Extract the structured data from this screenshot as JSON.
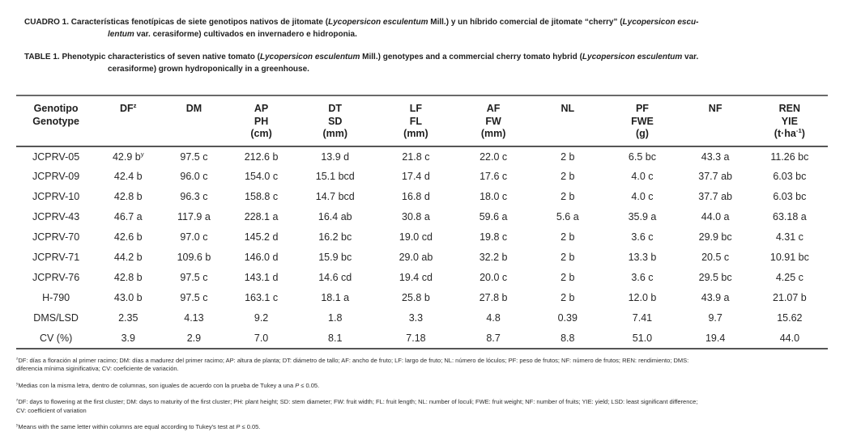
{
  "document": {
    "captions": {
      "spanish": [
        {
          "t": "CUADRO 1. Características fenotípicas de siete genotipos nativos de jitomate ("
        },
        {
          "t": "Lycopersicon esculentum",
          "i": true
        },
        {
          "t": " Mill.) y un híbrido comercial de jitomate “cherry” ("
        },
        {
          "t": "Lycopersicon escu-",
          "i": true
        },
        {
          "br": true
        },
        {
          "t": "lentum",
          "i": true
        },
        {
          "t": " var. cerasiforme) cultivados en invernadero e hidroponia."
        }
      ],
      "english": [
        {
          "t": "TABLE 1. Phenotypic characteristics of seven native tomato ("
        },
        {
          "t": "Lycopersicon esculentum",
          "i": true
        },
        {
          "t": " Mill.) genotypes and a commercial cherry tomato hybrid ("
        },
        {
          "t": "Lycopersicon esculentum",
          "i": true
        },
        {
          "t": " var."
        },
        {
          "br": true
        },
        {
          "t": "cerasiforme) grown hydroponically in a greenhouse."
        }
      ]
    }
  },
  "table": {
    "columns": [
      {
        "key": "genotype",
        "lines": [
          "Genotipo",
          "Genotype"
        ]
      },
      {
        "key": "df",
        "lines": [
          [
            {
              "t": "DF"
            },
            {
              "t": "z",
              "sup": true
            }
          ]
        ]
      },
      {
        "key": "dm",
        "lines": [
          "DM"
        ]
      },
      {
        "key": "ap-ph",
        "lines": [
          "AP",
          "PH",
          "(cm)"
        ]
      },
      {
        "key": "dt-sd",
        "lines": [
          "DT",
          "SD",
          "(mm)"
        ]
      },
      {
        "key": "lf-fl",
        "lines": [
          "LF",
          "FL",
          "(mm)"
        ]
      },
      {
        "key": "af-fw",
        "lines": [
          "AF",
          "FW",
          "(mm)"
        ]
      },
      {
        "key": "nl",
        "lines": [
          "NL"
        ]
      },
      {
        "key": "pf-fwe",
        "lines": [
          "PF",
          "FWE",
          "(g)"
        ]
      },
      {
        "key": "nf",
        "lines": [
          "NF"
        ]
      },
      {
        "key": "ren-yie",
        "lines": [
          "REN",
          "YIE",
          [
            {
              "t": "(t·ha"
            },
            {
              "t": "-1",
              "sup": true
            },
            {
              "t": ")"
            }
          ]
        ]
      }
    ],
    "rows": [
      [
        "JCPRV-05",
        [
          {
            "t": "42.9 b"
          },
          {
            "t": "y",
            "sup": true
          }
        ],
        "97.5 c",
        "212.6 b",
        "13.9 d",
        "21.8 c",
        "22.0 c",
        "2 b",
        "6.5 bc",
        "43.3 a",
        "11.26 bc"
      ],
      [
        "JCPRV-09",
        "42.4 b",
        "96.0 c",
        "154.0 c",
        "15.1 bcd",
        "17.4 d",
        "17.6 c",
        "2 b",
        "4.0 c",
        "37.7 ab",
        "6.03 bc"
      ],
      [
        "JCPRV-10",
        "42.8 b",
        "96.3 c",
        "158.8 c",
        "14.7 bcd",
        "16.8 d",
        "18.0 c",
        "2 b",
        "4.0 c",
        "37.7 ab",
        "6.03 bc"
      ],
      [
        "JCPRV-43",
        "46.7 a",
        "117.9 a",
        "228.1 a",
        "16.4 ab",
        "30.8 a",
        "59.6 a",
        "5.6 a",
        "35.9 a",
        "44.0 a",
        "63.18 a"
      ],
      [
        "JCPRV-70",
        "42.6 b",
        "97.0 c",
        "145.2 d",
        "16.2 bc",
        "19.0 cd",
        "19.8 c",
        "2 b",
        "3.6 c",
        "29.9 bc",
        "4.31 c"
      ],
      [
        "JCPRV-71",
        "44.2 b",
        "109.6 b",
        "146.0 d",
        "15.9 bc",
        "29.0 ab",
        "32.2 b",
        "2 b",
        "13.3 b",
        "20.5 c",
        "10.91 bc"
      ],
      [
        "JCPRV-76",
        "42.8 b",
        "97.5 c",
        "143.1 d",
        "14.6 cd",
        "19.4 cd",
        "20.0 c",
        "2 b",
        "3.6 c",
        "29.5 bc",
        "4.25 c"
      ],
      [
        "H-790",
        "43.0 b",
        "97.5 c",
        "163.1 c",
        "18.1 a",
        "25.8 b",
        "27.8 b",
        "2 b",
        "12.0 b",
        "43.9 a",
        "21.07 b"
      ],
      [
        "DMS/LSD",
        "2.35",
        "4.13",
        "9.2",
        "1.8",
        "3.3",
        "4.8",
        "0.39",
        "7.41",
        "9.7",
        "15.62"
      ],
      [
        "CV (%)",
        "3.9",
        "2.9",
        "7.0",
        "8.1",
        "7.18",
        "8.7",
        "8.8",
        "51.0",
        "19.4",
        "44.0"
      ]
    ]
  },
  "footnotes": {
    "abbrev_es": [
      {
        "t": "z",
        "sup": true
      },
      {
        "t": "DF: días a floración al primer racimo; DM: días a madurez del primer racimo; AP: altura de planta; DT: diámetro de tallo; AF: ancho de fruto; LF: largo de fruto; NL: número de lóculos; PF: peso de frutos; NF: número de frutos; REN: rendimiento; DMS:"
      },
      {
        "br": true
      },
      {
        "t": "diferencia mínima siginificativa; CV: coeficiente de variación."
      }
    ],
    "tukey_es": [
      {
        "t": "y",
        "sup": true
      },
      {
        "t": "Medias con la misma letra, dentro de columnas, son iguales de acuerdo con la prueba de Tukey a una "
      },
      {
        "t": "P",
        "i": true
      },
      {
        "t": " ≤ 0.05."
      }
    ],
    "abbrev_en": [
      {
        "t": "z",
        "sup": true
      },
      {
        "t": "DF: days to flowering at the first cluster; DM: days to maturity of the first cluster; PH: plant height; SD: stem diameter; FW: fruit width; FL: fruit length; NL: number of loculi; FWE: fruit weight; NF: number of fruits; YIE: yield; LSD: least significant difference;"
      },
      {
        "br": true
      },
      {
        "t": "CV: coefficient of variation"
      }
    ],
    "tukey_en": [
      {
        "t": "y",
        "sup": true
      },
      {
        "t": "Means with the same letter within columns are equal according to Tukey's test at "
      },
      {
        "t": "P",
        "i": true
      },
      {
        "t": " ≤ 0.05."
      }
    ]
  },
  "colors": {
    "background": "#ffffff",
    "text": "#222222",
    "rule": "#5a5a5a"
  }
}
